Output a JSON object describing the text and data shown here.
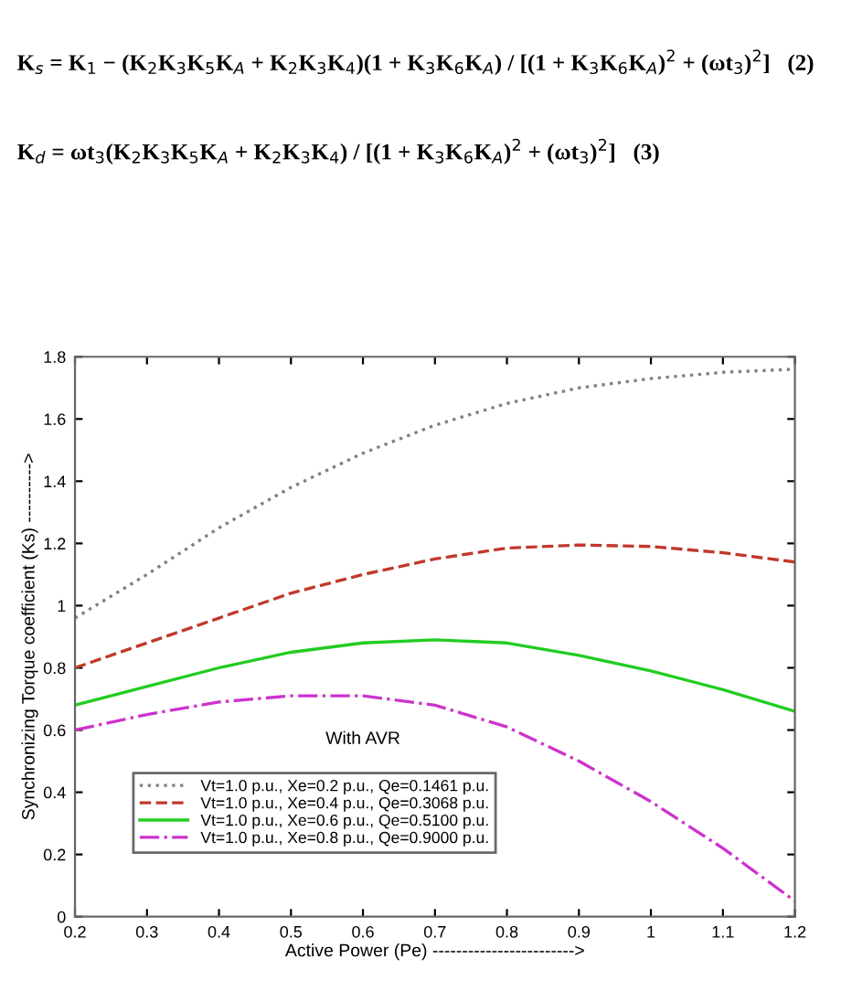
{
  "chart_data": {
    "type": "line",
    "annotations": [
      "K$_{s}$ = K$_{1}$ − (K$_{2}$K$_{3}$K$_{5}$K$_{A}$ + K$_{2}$K$_{3}$K$_{4}$)(1 + K$_{3}$K$_{6}$K$_{A}$) / [(1 + K$_{3}$K$_{6}$K$_{A}$)$^{2}$ + (ωt$_{3}$)$^{2}$]   (2)",
      "K$_{d}$ = ωt$_{3}$(K$_{2}$K$_{3}$K$_{5}$K$_{A}$ + K$_{2}$K$_{3}$K$_{4}$) / [(1 + K$_{3}$K$_{6}$K$_{A}$)$^{2}$ + (ωt$_{3}$)$^{2}$]   (3)",
      "With AVR"
    ],
    "xlabel": "Active Power (Pe) ------------------------>",
    "ylabel": "Synchronizing Torque coefficient (Ks) ---------->",
    "x": [
      0.2,
      0.3,
      0.4,
      0.5,
      0.6,
      0.7,
      0.8,
      0.9,
      1.0,
      1.1,
      1.2
    ],
    "series": [
      {
        "name": "Vt=1.0 p.u., Xe=0.2 p.u., Qe=0.1461 p.u.",
        "color": "#808080",
        "line_style": "dotted",
        "values": [
          0.96,
          1.1,
          1.25,
          1.38,
          1.49,
          1.58,
          1.65,
          1.7,
          1.73,
          1.75,
          1.76
        ]
      },
      {
        "name": "Vt=1.0 p.u., Xe=0.4 p.u., Qe=0.3068 p.u.",
        "color": "#c0392b",
        "line_style": "dashed",
        "values": [
          0.8,
          0.88,
          0.96,
          1.04,
          1.1,
          1.15,
          1.185,
          1.195,
          1.19,
          1.17,
          1.14
        ]
      },
      {
        "name": "Vt=1.0 p.u., Xe=0.6 p.u., Qe=0.5100 p.u.",
        "color": "#22cc22",
        "line_style": "solid",
        "values": [
          0.68,
          0.74,
          0.8,
          0.85,
          0.88,
          0.89,
          0.88,
          0.84,
          0.79,
          0.73,
          0.66
        ]
      },
      {
        "name": "Vt=1.0 p.u., Xe=0.8 p.u., Qe=0.9000 p.u.",
        "color": "#cc33cc",
        "line_style": "dashdot",
        "values": [
          0.6,
          0.65,
          0.69,
          0.71,
          0.71,
          0.68,
          0.61,
          0.5,
          0.37,
          0.22,
          0.05
        ]
      }
    ],
    "xlim": [
      0.2,
      1.2
    ],
    "xticks": [
      0.2,
      0.3,
      0.4,
      0.5,
      0.6,
      0.7,
      0.8,
      0.9,
      1,
      1.1,
      1.2
    ],
    "ylim": [
      0,
      1.8
    ],
    "yticks": [
      0,
      0.2,
      0.4,
      0.6,
      0.8,
      1,
      1.2,
      1.4,
      1.6,
      1.8
    ],
    "grid": false,
    "legend": "bottom left"
  }
}
